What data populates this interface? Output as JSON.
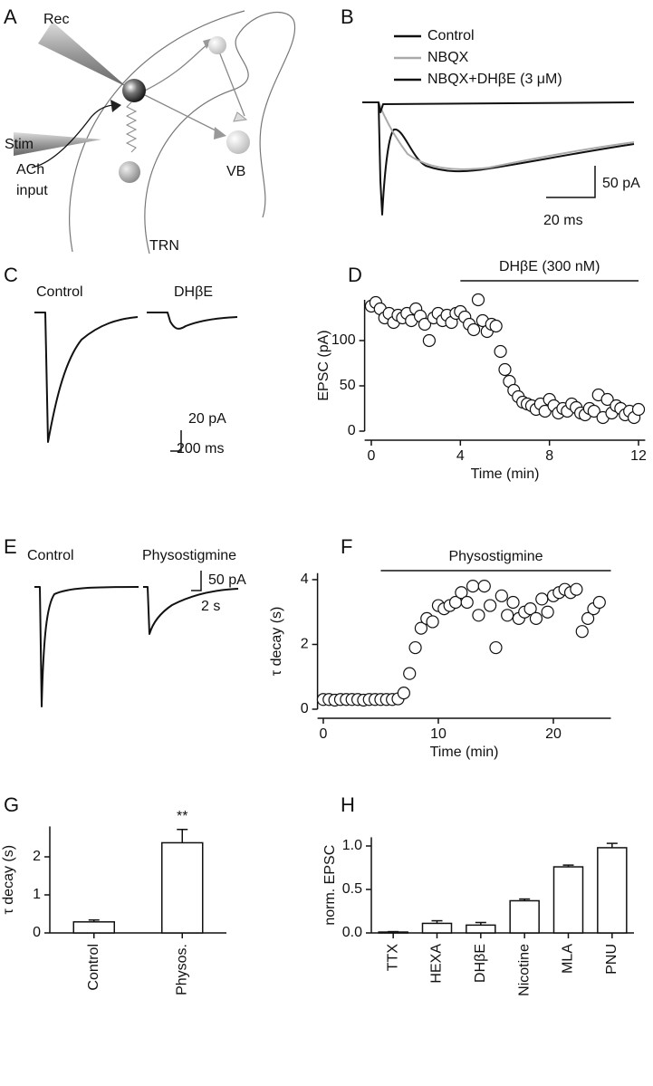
{
  "chart_data": [
    {
      "panel": "A",
      "type": "diagram",
      "labels": [
        "Rec",
        "Stim",
        "ACh",
        "input",
        "TRN",
        "VB"
      ]
    },
    {
      "panel": "B",
      "type": "trace",
      "legend": [
        {
          "name": "Control",
          "color": "#111111"
        },
        {
          "name": "NBQX",
          "color": "#aaaaaa"
        },
        {
          "name": "NBQX+DHβE (3 μM)",
          "color": "#111111"
        }
      ],
      "scale_bar": [
        "50 pA",
        "20 ms"
      ]
    },
    {
      "panel": "C",
      "type": "trace",
      "labels": [
        "Control",
        "DHβE"
      ],
      "scale_bar": [
        "20 pA",
        "200 ms"
      ]
    },
    {
      "panel": "D",
      "type": "scatter",
      "xlabel": "Time (min)",
      "ylabel": "EPSC (pA)",
      "drug": {
        "label": "DHβE (300 nM)",
        "start": 4,
        "end": 12
      },
      "x": [
        0,
        0.2,
        0.4,
        0.6,
        0.8,
        1,
        1.2,
        1.4,
        1.6,
        1.8,
        2,
        2.2,
        2.4,
        2.6,
        2.8,
        3,
        3.2,
        3.4,
        3.6,
        3.8,
        4,
        4.2,
        4.4,
        4.6,
        4.8,
        5,
        5.2,
        5.4,
        5.6,
        5.8,
        6,
        6.2,
        6.4,
        6.6,
        6.8,
        7,
        7.2,
        7.4,
        7.6,
        7.8,
        8,
        8.2,
        8.4,
        8.6,
        8.8,
        9,
        9.2,
        9.4,
        9.6,
        9.8,
        10,
        10.2,
        10.4,
        10.6,
        10.8,
        11,
        11.2,
        11.4,
        11.6,
        11.8,
        12
      ],
      "values": [
        138,
        142,
        135,
        125,
        130,
        120,
        128,
        125,
        130,
        122,
        135,
        127,
        118,
        100,
        125,
        130,
        122,
        128,
        120,
        130,
        132,
        126,
        118,
        112,
        145,
        122,
        110,
        118,
        116,
        88,
        68,
        55,
        45,
        38,
        32,
        30,
        28,
        24,
        30,
        22,
        35,
        28,
        20,
        25,
        22,
        30,
        26,
        20,
        18,
        25,
        22,
        40,
        15,
        35,
        20,
        28,
        25,
        18,
        22,
        15,
        24
      ],
      "xlim": [
        -0.3,
        12.3
      ],
      "xticks": [
        0,
        4,
        8,
        12
      ],
      "ylim": [
        0,
        145
      ],
      "yticks": [
        0,
        50,
        100
      ]
    },
    {
      "panel": "E",
      "type": "trace",
      "labels": [
        "Control",
        "Physostigmine"
      ],
      "scale_bar": [
        "50 pA",
        "2 s"
      ]
    },
    {
      "panel": "F",
      "type": "scatter",
      "xlabel": "Time (min)",
      "ylabel": "τ decay (s)",
      "drug": {
        "label": "Physostigmine",
        "start": 5,
        "end": 25
      },
      "x": [
        0,
        0.5,
        1,
        1.5,
        2,
        2.5,
        3,
        3.5,
        4,
        4.5,
        5,
        5.5,
        6,
        6.5,
        7,
        7.5,
        8,
        8.5,
        9,
        9.5,
        10,
        10.5,
        11,
        11.5,
        12,
        12.5,
        13,
        13.5,
        14,
        14.5,
        15,
        15.5,
        16,
        16.5,
        17,
        17.5,
        18,
        18.5,
        19,
        19.5,
        20,
        20.5,
        21,
        21.5,
        22,
        22.5,
        23,
        23.5,
        24
      ],
      "values": [
        0.3,
        0.3,
        0.28,
        0.3,
        0.3,
        0.3,
        0.3,
        0.28,
        0.3,
        0.3,
        0.3,
        0.3,
        0.3,
        0.32,
        0.5,
        1.1,
        1.9,
        2.5,
        2.8,
        2.7,
        3.2,
        3.1,
        3.2,
        3.3,
        3.6,
        3.3,
        3.8,
        2.9,
        3.8,
        3.2,
        1.9,
        3.5,
        2.9,
        3.3,
        2.8,
        3.0,
        3.1,
        2.8,
        3.4,
        3.0,
        3.5,
        3.6,
        3.7,
        3.6,
        3.7,
        2.4,
        2.8,
        3.1,
        3.3
      ],
      "xlim": [
        -0.5,
        25
      ],
      "xticks": [
        0,
        10,
        20
      ],
      "ylim": [
        0,
        4.2
      ],
      "yticks": [
        0,
        2,
        4
      ]
    },
    {
      "panel": "G",
      "type": "bar",
      "ylabel": "τ decay (s)",
      "categories": [
        "Control",
        "Physos."
      ],
      "values": [
        0.29,
        2.37
      ],
      "errors": [
        0.05,
        0.35
      ],
      "color": "#ffffff",
      "annotations": [
        {
          "text": "**",
          "category": "Physos."
        }
      ],
      "ylim": [
        0,
        2.8
      ],
      "yticks": [
        0,
        1,
        2
      ]
    },
    {
      "panel": "H",
      "type": "bar",
      "ylabel": "norm. EPSC",
      "categories": [
        "TTX",
        "HEXA",
        "DHβE",
        "Nicotine",
        "MLA",
        "PNU"
      ],
      "values": [
        0.01,
        0.11,
        0.09,
        0.37,
        0.76,
        0.98
      ],
      "errors": [
        0.005,
        0.03,
        0.03,
        0.02,
        0.02,
        0.05
      ],
      "color": "#ffffff",
      "ylim": [
        0,
        1.1
      ],
      "yticks": [
        {
          "value": 0,
          "label": "0.0"
        },
        {
          "value": 0.5,
          "label": "0.5"
        },
        {
          "value": 1,
          "label": "1.0"
        }
      ]
    }
  ]
}
